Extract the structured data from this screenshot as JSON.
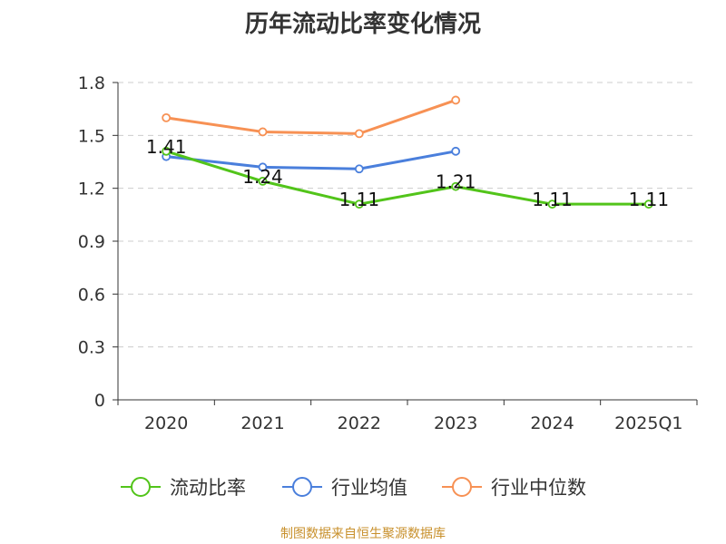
{
  "chart_data": {
    "type": "line",
    "title": "历年流动比率变化情况",
    "categories": [
      "2020",
      "2021",
      "2022",
      "2023",
      "2024",
      "2025Q1"
    ],
    "series": [
      {
        "name": "流动比率",
        "color": "#52c41a",
        "values": [
          1.41,
          1.24,
          1.11,
          1.21,
          1.11,
          1.11
        ],
        "labels": [
          "1.41",
          "1.24",
          "1.11",
          "1.21",
          "1.11",
          "1.11"
        ]
      },
      {
        "name": "行业均值",
        "color": "#4a7fdc",
        "values": [
          1.38,
          1.32,
          1.31,
          1.41,
          null,
          null
        ]
      },
      {
        "name": "行业中位数",
        "color": "#f79154",
        "values": [
          1.6,
          1.52,
          1.51,
          1.7,
          null,
          null
        ]
      }
    ],
    "y_ticks": [
      "0",
      "0.3",
      "0.6",
      "0.9",
      "1.2",
      "1.5",
      "1.8"
    ],
    "ylim": [
      0,
      1.8
    ],
    "xlabel": "",
    "ylabel": "",
    "grid": true,
    "legend_position": "bottom"
  },
  "footer": {
    "source": "制图数据来自恒生聚源数据库"
  }
}
